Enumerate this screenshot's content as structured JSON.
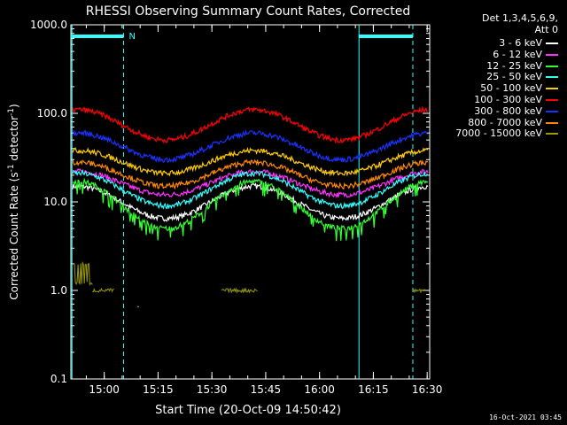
{
  "chart_data": {
    "type": "line",
    "title": "RHESSI Observing Summary Count Rates, Corrected",
    "xlabel": "Start Time (20-Oct-09 14:50:42)",
    "ylabel_main": "Corrected Count Rate (s",
    "ylabel_sup1": "-1",
    "ylabel_mid": " detector",
    "ylabel_sup2": "-1",
    "ylabel_end": ")",
    "yscale": "log",
    "ylim": [
      0.1,
      1000
    ],
    "x_start_minutes": 0,
    "x_end_minutes": 100,
    "x_ticks": [
      {
        "label": "15:00",
        "minute": 9.3
      },
      {
        "label": "15:15",
        "minute": 24.3
      },
      {
        "label": "15:30",
        "minute": 39.3
      },
      {
        "label": "15:45",
        "minute": 54.3
      },
      {
        "label": "16:00",
        "minute": 69.3
      },
      {
        "label": "16:15",
        "minute": 84.3
      },
      {
        "label": "16:30",
        "minute": 99.3
      }
    ],
    "y_ticks": [
      {
        "label": "1000.0",
        "value": 1000
      },
      {
        "label": "100.0",
        "value": 100
      },
      {
        "label": "10.0",
        "value": 10
      },
      {
        "label": "1.0",
        "value": 1
      },
      {
        "label": "0.1",
        "value": 0.1
      }
    ],
    "legend_header": [
      "Det 1,3,4,5,6,9,",
      "Att 0"
    ],
    "series": [
      {
        "name": "3 - 6 keV",
        "color": "#ffffff",
        "min": 6.5,
        "max": 15
      },
      {
        "name": "6 - 12 keV",
        "color": "#ff33ff",
        "min": 12,
        "max": 22
      },
      {
        "name": "12 - 25 keV",
        "color": "#33ff33",
        "min": 5,
        "max": 17
      },
      {
        "name": "25 - 50 keV",
        "color": "#33ffff",
        "min": 9,
        "max": 21
      },
      {
        "name": "50 - 100 keV",
        "color": "#ffcc00",
        "min": 21,
        "max": 38
      },
      {
        "name": "100 - 300 keV",
        "color": "#ff0000",
        "min": 50,
        "max": 110
      },
      {
        "name": "300 - 800 keV",
        "color": "#1a33ff",
        "min": 30,
        "max": 60
      },
      {
        "name": "800 - 7000 keV",
        "color": "#ff8800",
        "min": 15,
        "max": 28
      },
      {
        "name": "7000 - 15000 keV",
        "color": "#999900",
        "min": 1,
        "max": 2
      }
    ],
    "night_marker": "N",
    "orbit_bar_color": "#33ffff"
  },
  "footer_date": "16-Oct-2021 03:45"
}
